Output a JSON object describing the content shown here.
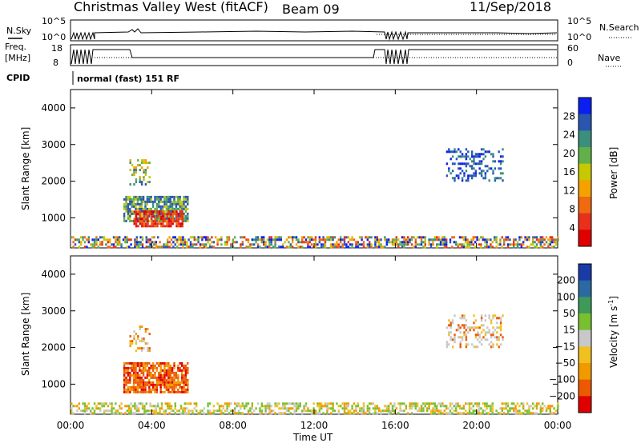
{
  "header": {
    "title": "Christmas Valley West (fitACF)",
    "beam": "Beam 09",
    "date": "11/Sep/2018"
  },
  "status_panels": {
    "nsky_label": "N.Sky",
    "nsearch_label": "N.Search",
    "nsky_ticks": [
      "10^5",
      "10^0"
    ],
    "freq_label_line1": "Freq.",
    "freq_label_line2": "[MHz]",
    "freq_ticks": [
      "18",
      "8"
    ],
    "nave_label": "Nave",
    "nave_ticks": [
      "60",
      "0"
    ],
    "cpid_label": "CPID",
    "cpid_text": "normal (fast) 151 RF"
  },
  "x_axis": {
    "label": "Time UT",
    "ticks": [
      "00:00",
      "04:00",
      "08:00",
      "12:00",
      "16:00",
      "20:00",
      "00:00"
    ]
  },
  "chart_data": [
    {
      "type": "heatmap",
      "name": "power-panel",
      "xlabel": "Time UT",
      "ylabel": "Slant Range [km]",
      "xlim": [
        0,
        24
      ],
      "ylim": [
        180,
        4500
      ],
      "yticks": [
        1000,
        2000,
        3000,
        4000
      ],
      "colorbar": {
        "label": "Power [dB]",
        "ticks": [
          4,
          8,
          12,
          16,
          20,
          24,
          28
        ],
        "range": [
          0,
          32
        ],
        "colors": [
          "#0a20f0",
          "#2a56b0",
          "#3b8f7d",
          "#62b04a",
          "#c8c800",
          "#f5a100",
          "#ef6a10",
          "#e8301a",
          "#e00000"
        ]
      },
      "regions": [
        {
          "t": [
            2.9,
            3.9
          ],
          "r": [
            1900,
            2600
          ],
          "level": "mixed-low"
        },
        {
          "t": [
            2.6,
            5.8
          ],
          "r": [
            900,
            1600
          ],
          "level": "green-blue"
        },
        {
          "t": [
            3.1,
            5.5
          ],
          "r": [
            750,
            1200
          ],
          "level": "red"
        },
        {
          "t": [
            18.5,
            21.3
          ],
          "r": [
            2000,
            2900
          ],
          "level": "blue"
        },
        {
          "t": [
            0,
            24
          ],
          "r": [
            200,
            500
          ],
          "level": "mixed-ground"
        }
      ]
    },
    {
      "type": "heatmap",
      "name": "velocity-panel",
      "xlabel": "Time UT",
      "ylabel": "Slant Range [km]",
      "xlim": [
        0,
        24
      ],
      "ylim": [
        180,
        4500
      ],
      "yticks": [
        1000,
        2000,
        3000,
        4000
      ],
      "colorbar": {
        "label": "Velocity [m s^-1]",
        "label_main": "Velocity [m s",
        "label_sup": "-1",
        "label_end": "]",
        "ticks": [
          200,
          100,
          50,
          15,
          -15,
          -50,
          -100,
          -200
        ],
        "colors": [
          "#1a3aa8",
          "#2a6aa0",
          "#3f9a5a",
          "#78c030",
          "#c8c8c8",
          "#f0c020",
          "#f09a00",
          "#ec5a00",
          "#e00000"
        ]
      },
      "regions": [
        {
          "t": [
            2.9,
            3.9
          ],
          "r": [
            1900,
            2600
          ],
          "level": "orange"
        },
        {
          "t": [
            2.6,
            5.8
          ],
          "r": [
            800,
            1600
          ],
          "level": "red-orange"
        },
        {
          "t": [
            18.5,
            21.3
          ],
          "r": [
            2000,
            2900
          ],
          "level": "grey"
        },
        {
          "t": [
            0,
            24
          ],
          "r": [
            200,
            500
          ],
          "level": "yellow-green-ground"
        }
      ]
    }
  ]
}
